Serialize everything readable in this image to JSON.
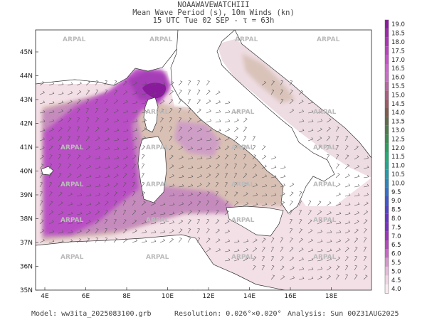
{
  "title": {
    "line1": "NOAAWAVEWATCHIII",
    "line2": "Mean Wave Period (s), 10m Winds (kn)",
    "line3": "15 UTC Tue 02 SEP  -  τ = 63h"
  },
  "watermark": "ARPAL",
  "axes": {
    "lat_labels": [
      "45N",
      "44N",
      "43N",
      "42N",
      "41N",
      "40N",
      "39N",
      "38N",
      "37N",
      "36N",
      "35N"
    ],
    "lon_labels": [
      "4E",
      "6E",
      "8E",
      "10E",
      "12E",
      "14E",
      "16E",
      "18E"
    ]
  },
  "colorbar": {
    "levels": [
      "19.0",
      "18.5",
      "18.0",
      "17.5",
      "17.0",
      "16.5",
      "16.0",
      "15.5",
      "15.0",
      "14.5",
      "14.0",
      "13.5",
      "13.0",
      "12.5",
      "12.0",
      "11.5",
      "11.0",
      "10.5",
      "10.0",
      "9.5",
      "9.0",
      "8.5",
      "8.0",
      "7.5",
      "7.0",
      "6.5",
      "6.0",
      "5.5",
      "5.0",
      "4.5",
      "4.0"
    ],
    "colors": [
      "#8a1a9c",
      "#9b2aa8",
      "#aa35b2",
      "#b843bc",
      "#c553c6",
      "#cd66cd",
      "#c86ec4",
      "#b8679f",
      "#a8607e",
      "#9a5b64",
      "#7f5a4e",
      "#5f6a4a",
      "#4e7a4c",
      "#3c8c52",
      "#2c9d5f",
      "#25a977",
      "#23a58f",
      "#2799a6",
      "#2d86b8",
      "#3670c3",
      "#4156c6",
      "#5142c6",
      "#6535c2",
      "#7a30bd",
      "#9a37b8",
      "#b449b8",
      "#c76ac4",
      "#d598cb",
      "#e4bcd8",
      "#efd6e3",
      "#f8ebef"
    ]
  },
  "footer": {
    "model": "Model: ww3ita_2025083100.grb",
    "resolution": "Resolution: 0.026°×0.020°",
    "analysis": "Analysis: Sun 00Z31AUG2025"
  }
}
